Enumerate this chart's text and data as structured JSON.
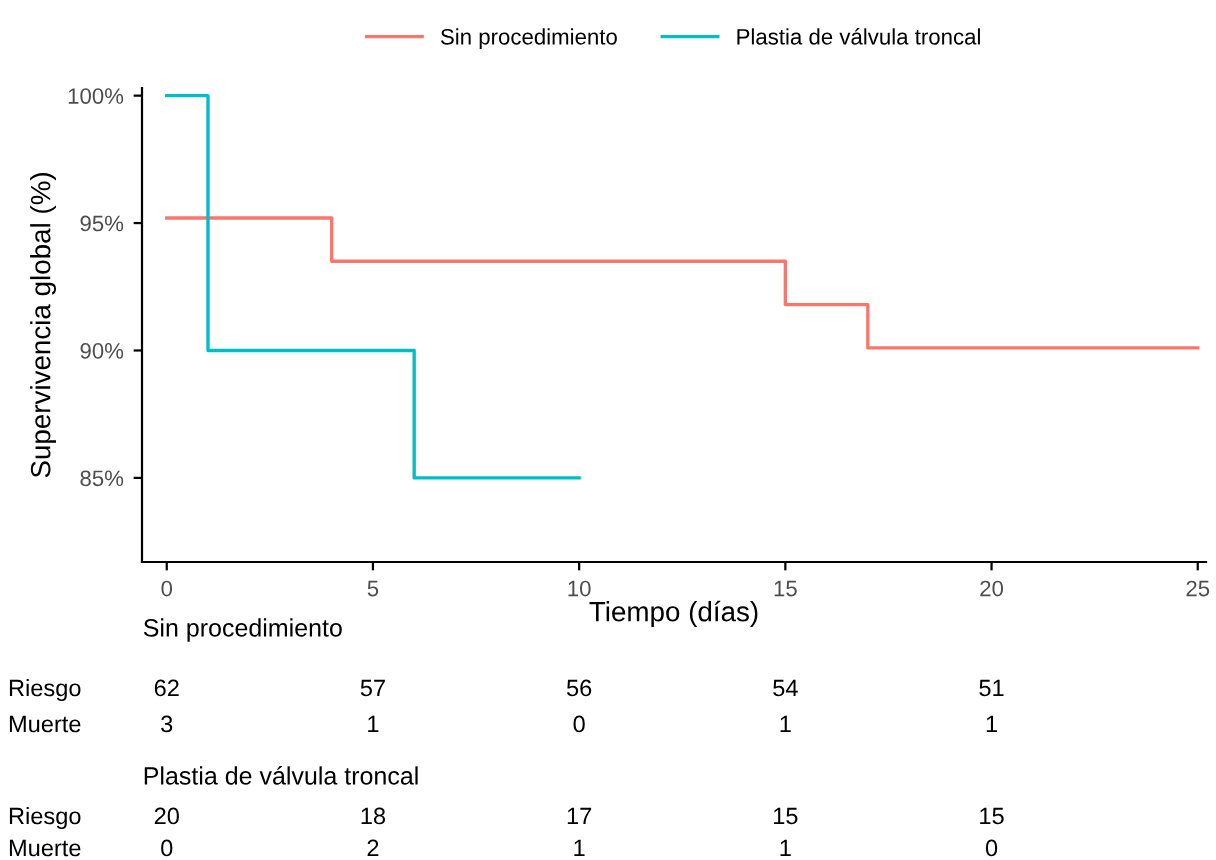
{
  "chart_data": {
    "type": "step",
    "xlabel": "Tiempo (días)",
    "ylabel": "Supervivencia global (%)",
    "series": [
      {
        "name": "Sin procedimiento",
        "color": "#f8766d",
        "x": [
          0,
          4,
          15,
          17,
          25
        ],
        "values": [
          95.2,
          93.5,
          91.8,
          90.1,
          90.1
        ]
      },
      {
        "name": "Plastia de válvula troncal",
        "color": "#00bfc4",
        "x": [
          0,
          1,
          6,
          10
        ],
        "values": [
          100,
          90,
          85,
          85
        ]
      }
    ],
    "xlim": [
      -0.6,
      25.2
    ],
    "xticks": [
      0,
      5,
      10,
      15,
      20,
      25
    ],
    "ylim": [
      81.7,
      100.3
    ],
    "yticks": [
      {
        "value": 85,
        "label": "85%"
      },
      {
        "value": 90,
        "label": "90%"
      },
      {
        "value": 95,
        "label": "95%"
      },
      {
        "value": 100,
        "label": "100%"
      }
    ],
    "grid": false,
    "legend": "top",
    "annotations": [
      "Sin procedimiento",
      "Riesgo",
      "62",
      "57",
      "56",
      "54",
      "51",
      "Muerte",
      "3",
      "1",
      "0",
      "1",
      "1",
      "Plastia de válvula troncal",
      "Riesgo",
      "20",
      "18",
      "17",
      "15",
      "15",
      "Muerte",
      "0",
      "2",
      "1",
      "1",
      "0"
    ]
  }
}
